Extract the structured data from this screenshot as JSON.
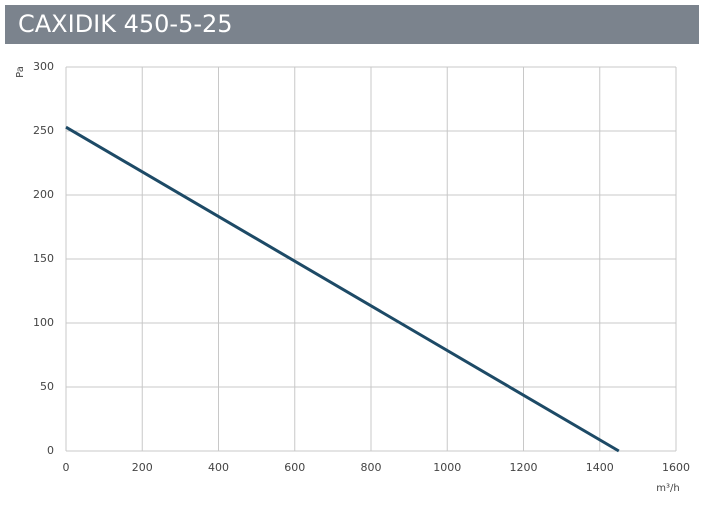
{
  "chart_data": {
    "type": "line",
    "title": "CAXIDIK 450-5-25",
    "x_label": "m³/h",
    "y_label": "Pa",
    "x": [
      0,
      1450
    ],
    "series": [
      {
        "name": "CAXIDIK 450-5-25",
        "color": "#1d4a66",
        "values": [
          253,
          0
        ]
      }
    ],
    "xlim": [
      0,
      1600
    ],
    "xticks": [
      0,
      200,
      400,
      600,
      800,
      1000,
      1200,
      1400,
      1600
    ],
    "ylim": [
      0,
      300
    ],
    "yticks": [
      0,
      50,
      100,
      150,
      200,
      250,
      300
    ],
    "grid": true,
    "title_background": "#7b838d"
  }
}
